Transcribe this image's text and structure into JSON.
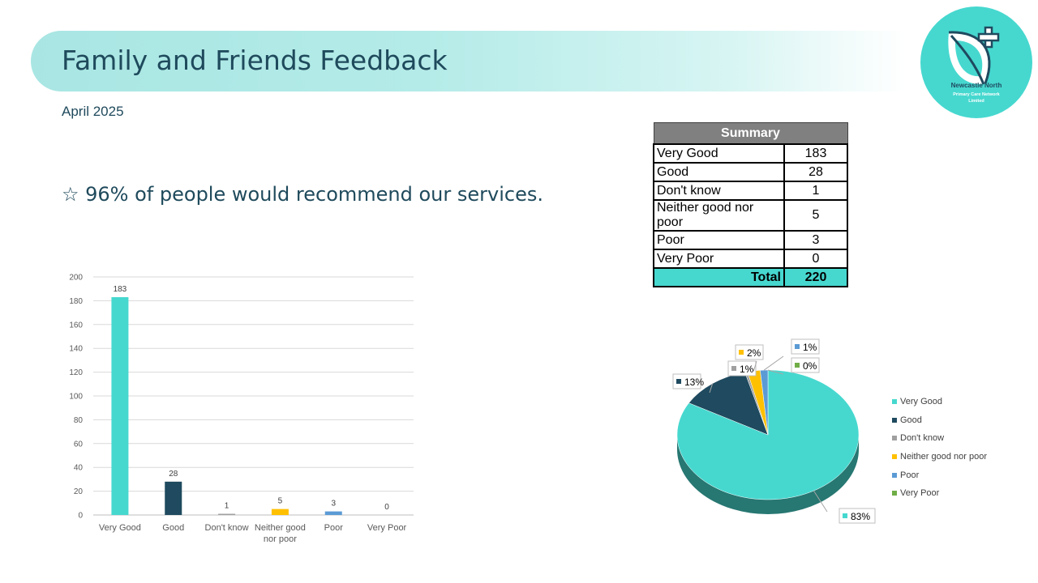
{
  "header": {
    "title": "Family and Friends Feedback",
    "subtitle": "April 2025",
    "headline": "☆ 96% of people would recommend our services."
  },
  "logo": {
    "icon": "leaf-cross-icon",
    "line1": "Newcastle North",
    "line2": "Primary Care Network",
    "line3": "Limited",
    "color": "#46d8cf"
  },
  "summary": {
    "heading": "Summary",
    "rows": [
      {
        "label": "Very Good",
        "value": "183"
      },
      {
        "label": "Good",
        "value": "28"
      },
      {
        "label": "Don't know",
        "value": "1"
      },
      {
        "label": "Neither good nor poor",
        "value": "5"
      },
      {
        "label": "Poor",
        "value": "3"
      },
      {
        "label": "Very Poor",
        "value": "0"
      }
    ],
    "total_label": "Total",
    "total_value": "220"
  },
  "chart_data": [
    {
      "type": "bar",
      "categories": [
        "Very Good",
        "Good",
        "Don't know",
        "Neither good nor poor",
        "Poor",
        "Very Poor"
      ],
      "values": [
        183,
        28,
        1,
        5,
        3,
        0
      ],
      "data_labels": [
        "183",
        "28",
        "1",
        "5",
        "3",
        "0"
      ],
      "colors": [
        "#46d8cf",
        "#1f4a5f",
        "#a0a0a0",
        "#ffc000",
        "#5b9bd5",
        "#70ad47"
      ],
      "ylim": [
        0,
        200
      ],
      "yticks": [
        0,
        20,
        40,
        60,
        80,
        100,
        120,
        140,
        160,
        180,
        200
      ],
      "grid": true,
      "title": "",
      "xlabel": "",
      "ylabel": ""
    },
    {
      "type": "pie",
      "labels": [
        "Very Good",
        "Good",
        "Don't know",
        "Neither good nor poor",
        "Poor",
        "Very Poor"
      ],
      "values": [
        183,
        28,
        1,
        5,
        3,
        0
      ],
      "data_labels": [
        "83%",
        "13%",
        "1%",
        "2%",
        "1%",
        "0%"
      ],
      "colors": [
        "#46d8cf",
        "#1f4a5f",
        "#a0a0a0",
        "#ffc000",
        "#5b9bd5",
        "#70ad47"
      ],
      "legend_position": "right",
      "title": ""
    }
  ]
}
